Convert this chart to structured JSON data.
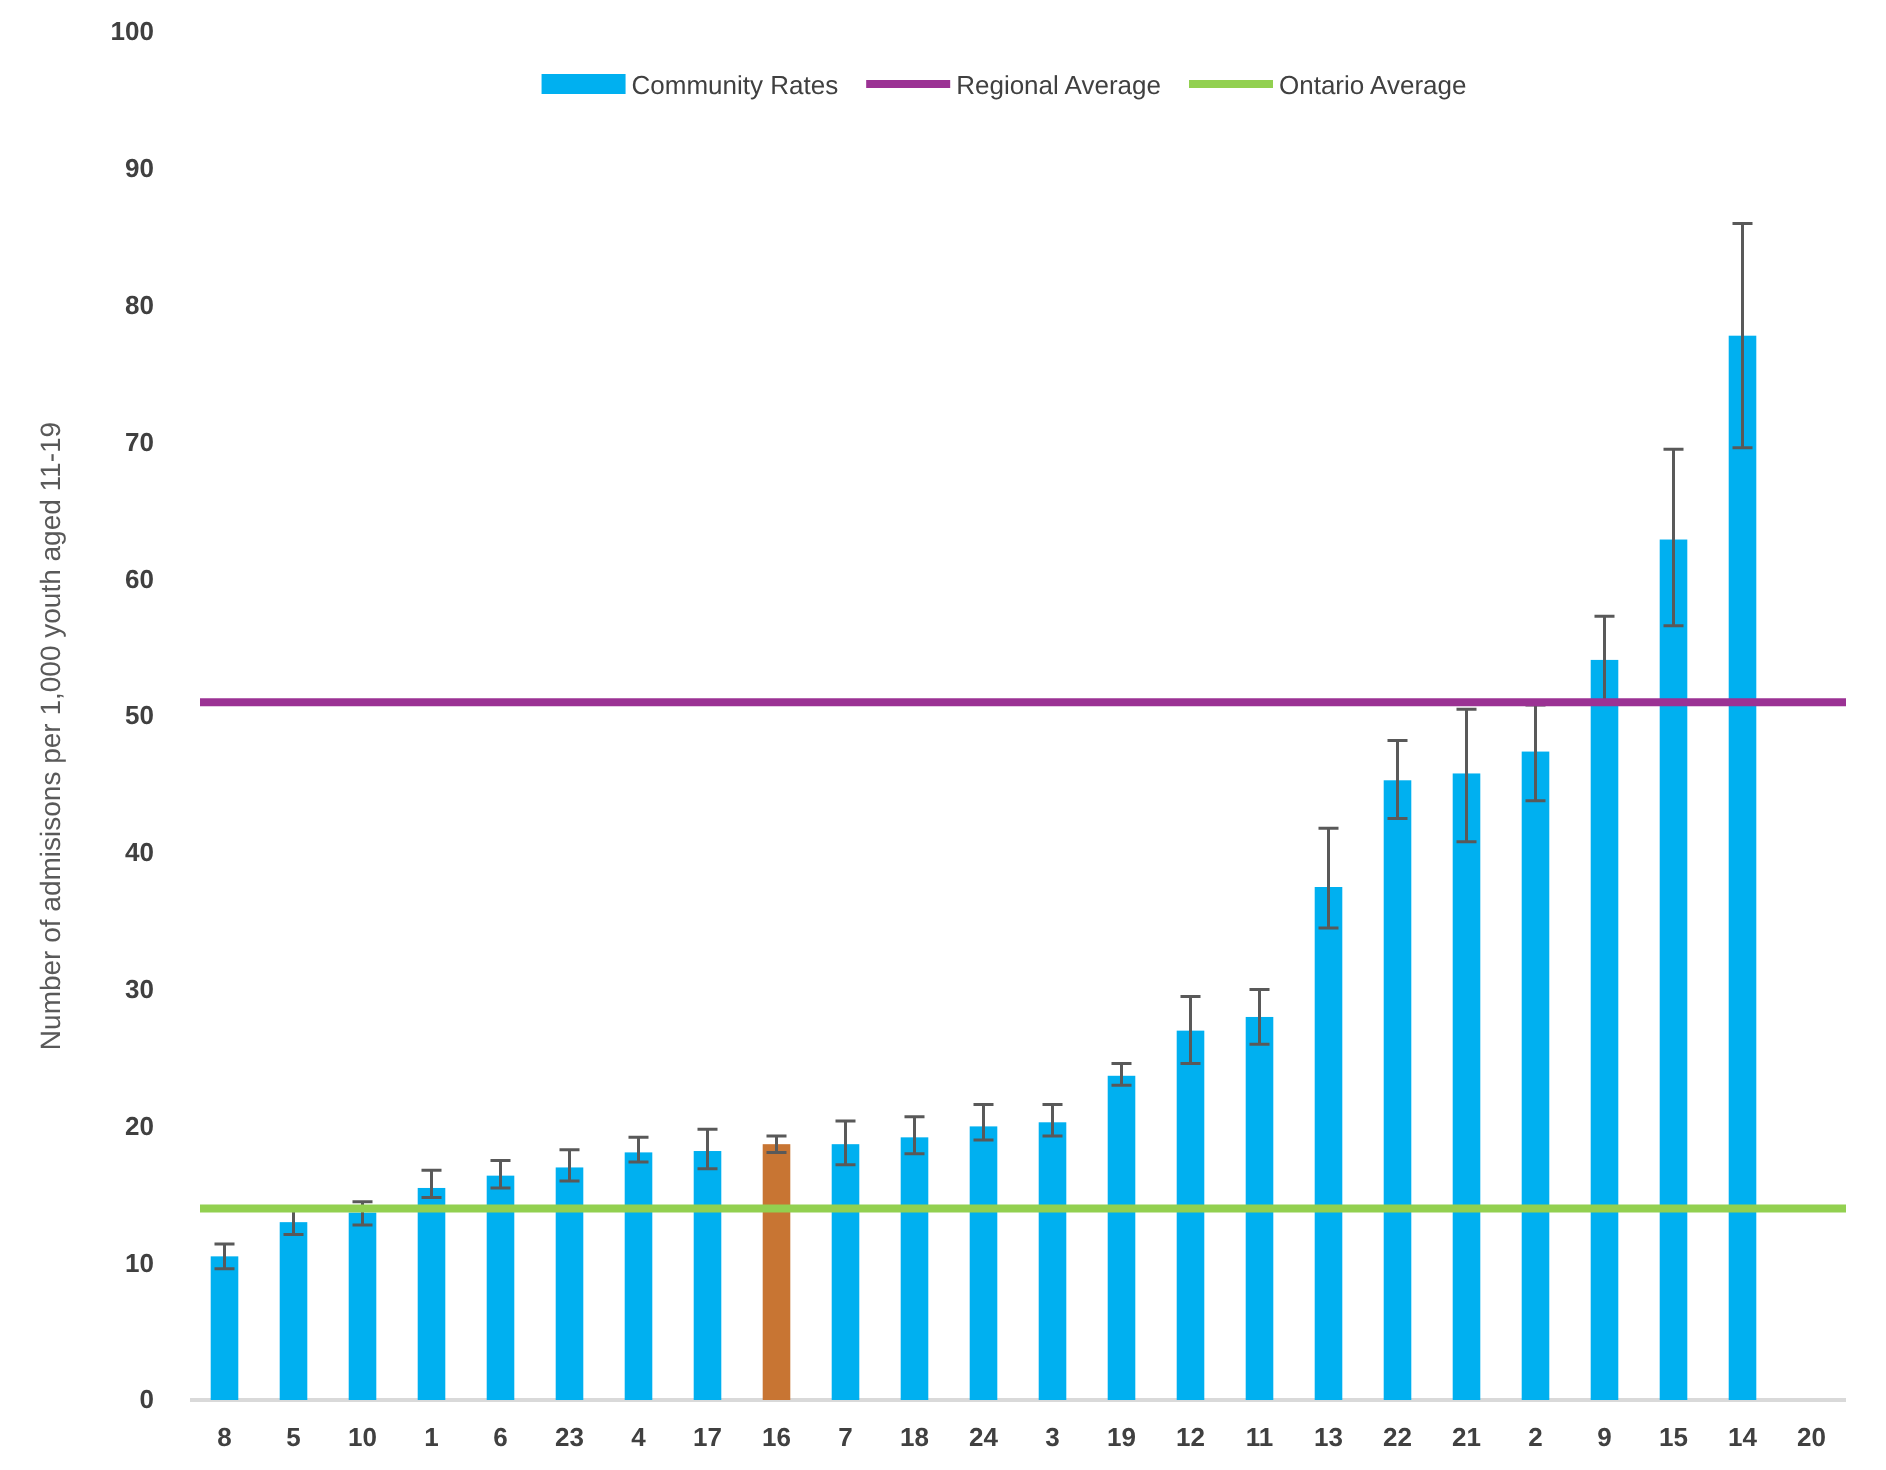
{
  "chart_data": {
    "type": "bar",
    "ylabel": "Number of admisisons  per 1,000 youth aged 11-19",
    "categories": [
      "8",
      "5",
      "10",
      "1",
      "6",
      "23",
      "4",
      "17",
      "16",
      "7",
      "18",
      "24",
      "3",
      "19",
      "12",
      "11",
      "13",
      "22",
      "21",
      "2",
      "9",
      "15",
      "14",
      "20"
    ],
    "series": [
      {
        "name": "Community Rates",
        "color": "#00b0f0",
        "colors": [
          "#00b0f0",
          "#00b0f0",
          "#00b0f0",
          "#00b0f0",
          "#00b0f0",
          "#00b0f0",
          "#00b0f0",
          "#00b0f0",
          "#c87533",
          "#00b0f0",
          "#00b0f0",
          "#00b0f0",
          "#00b0f0",
          "#00b0f0",
          "#00b0f0",
          "#00b0f0",
          "#00b0f0",
          "#00b0f0",
          "#00b0f0",
          "#00b0f0",
          "#00b0f0",
          "#00b0f0",
          "#00b0f0",
          "#00b0f0"
        ],
        "values": [
          10.5,
          13.0,
          13.7,
          15.5,
          16.4,
          17.0,
          18.1,
          18.2,
          18.7,
          18.7,
          19.2,
          20.0,
          20.3,
          23.7,
          27.0,
          28.0,
          37.5,
          45.3,
          45.8,
          47.4,
          54.1,
          62.9,
          77.8,
          null
        ],
        "errors": [
          [
            9.6,
            11.4
          ],
          [
            12.1,
            14.0
          ],
          [
            12.8,
            14.5
          ],
          [
            14.8,
            16.8
          ],
          [
            15.5,
            17.5
          ],
          [
            16.0,
            18.3
          ],
          [
            17.4,
            19.2
          ],
          [
            16.9,
            19.8
          ],
          [
            18.1,
            19.3
          ],
          [
            17.2,
            20.4
          ],
          [
            18.0,
            20.7
          ],
          [
            19.0,
            21.6
          ],
          [
            19.3,
            21.6
          ],
          [
            23.0,
            24.6
          ],
          [
            24.6,
            29.5
          ],
          [
            26.0,
            30.0
          ],
          [
            34.5,
            41.8
          ],
          [
            42.5,
            48.2
          ],
          [
            40.8,
            50.5
          ],
          [
            43.8,
            50.8
          ],
          [
            51.0,
            57.3
          ],
          [
            56.6,
            69.5
          ],
          [
            69.6,
            86.0
          ],
          null
        ]
      }
    ],
    "ref_lines": [
      {
        "axis": "y",
        "value": 51,
        "label": "Regional Average",
        "color": "#9b3294"
      },
      {
        "axis": "y",
        "value": 14,
        "label": "Ontario Average",
        "color": "#92d050"
      }
    ],
    "ylim": [
      0,
      100
    ],
    "yticks": [
      0,
      10,
      20,
      30,
      40,
      50,
      60,
      70,
      80,
      90,
      100
    ],
    "grid": false,
    "legend": "top"
  }
}
